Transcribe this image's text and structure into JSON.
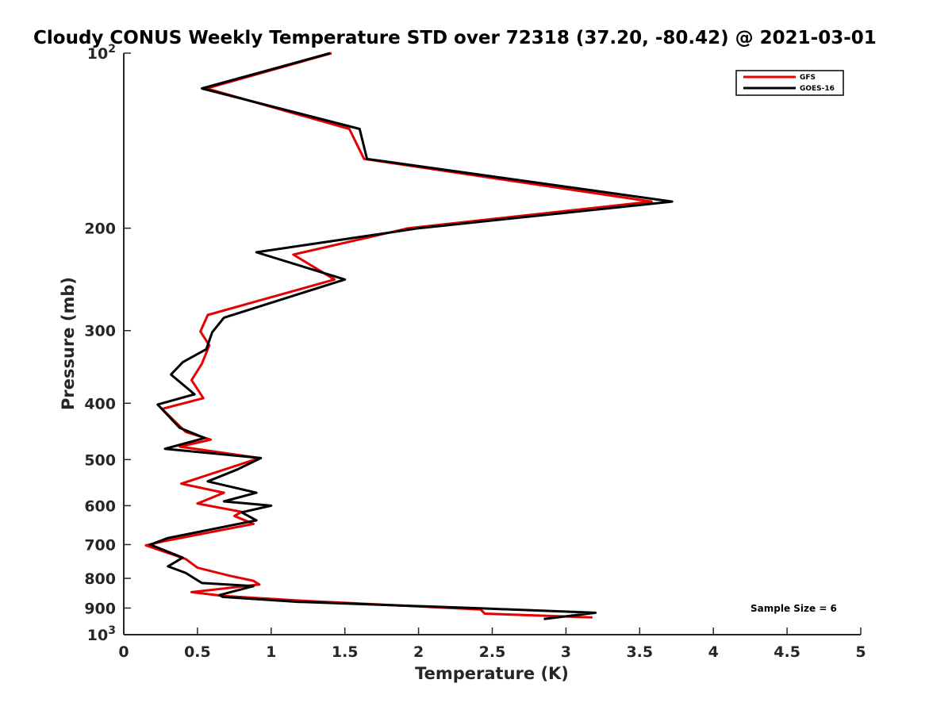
{
  "chart_data": {
    "type": "line",
    "title": "Cloudy CONUS Weekly Temperature STD over 72318 (37.20, -80.42) @ 2021-03-01",
    "xlabel": "Temperature (K)",
    "ylabel": "Pressure (mb)",
    "xlim": [
      0,
      5
    ],
    "ylim": [
      100,
      1000
    ],
    "yscale": "log",
    "yreversed": true,
    "x_ticks": [
      {
        "value": 0,
        "label": "0"
      },
      {
        "value": 0.5,
        "label": "0.5"
      },
      {
        "value": 1,
        "label": "1"
      },
      {
        "value": 1.5,
        "label": "1.5"
      },
      {
        "value": 2,
        "label": "2"
      },
      {
        "value": 2.5,
        "label": "2.5"
      },
      {
        "value": 3,
        "label": "3"
      },
      {
        "value": 3.5,
        "label": "3.5"
      },
      {
        "value": 4,
        "label": "4"
      },
      {
        "value": 4.5,
        "label": "4.5"
      },
      {
        "value": 5,
        "label": "5"
      }
    ],
    "y_ticks": [
      {
        "value": 100,
        "base": "10",
        "exp": "2"
      },
      {
        "value": 200,
        "label": "200"
      },
      {
        "value": 300,
        "label": "300"
      },
      {
        "value": 400,
        "label": "400"
      },
      {
        "value": 500,
        "label": "500"
      },
      {
        "value": 600,
        "label": "600"
      },
      {
        "value": 700,
        "label": "700"
      },
      {
        "value": 800,
        "label": "800"
      },
      {
        "value": 900,
        "label": "900"
      },
      {
        "value": 1000,
        "base": "10",
        "exp": "3"
      }
    ],
    "legend_position": "top-right",
    "annotation": "Sample Size = 6",
    "series": [
      {
        "name": "GFS",
        "color": "#e60000",
        "points": [
          {
            "x": 1.41,
            "p": 100
          },
          {
            "x": 0.56,
            "p": 115
          },
          {
            "x": 1.53,
            "p": 135
          },
          {
            "x": 1.63,
            "p": 152
          },
          {
            "x": 3.58,
            "p": 180
          },
          {
            "x": 1.93,
            "p": 200
          },
          {
            "x": 1.15,
            "p": 222
          },
          {
            "x": 1.43,
            "p": 245
          },
          {
            "x": 0.57,
            "p": 282
          },
          {
            "x": 0.52,
            "p": 301
          },
          {
            "x": 0.58,
            "p": 318
          },
          {
            "x": 0.53,
            "p": 342
          },
          {
            "x": 0.46,
            "p": 365
          },
          {
            "x": 0.54,
            "p": 392
          },
          {
            "x": 0.26,
            "p": 409
          },
          {
            "x": 0.42,
            "p": 448
          },
          {
            "x": 0.59,
            "p": 462
          },
          {
            "x": 0.38,
            "p": 475
          },
          {
            "x": 0.92,
            "p": 497
          },
          {
            "x": 0.39,
            "p": 550
          },
          {
            "x": 0.68,
            "p": 570
          },
          {
            "x": 0.5,
            "p": 595
          },
          {
            "x": 0.8,
            "p": 615
          },
          {
            "x": 0.75,
            "p": 625
          },
          {
            "x": 0.88,
            "p": 645
          },
          {
            "x": 0.28,
            "p": 690
          },
          {
            "x": 0.15,
            "p": 702
          },
          {
            "x": 0.42,
            "p": 741
          },
          {
            "x": 0.5,
            "p": 767
          },
          {
            "x": 0.72,
            "p": 792
          },
          {
            "x": 0.88,
            "p": 808
          },
          {
            "x": 0.92,
            "p": 820
          },
          {
            "x": 0.46,
            "p": 845
          },
          {
            "x": 0.68,
            "p": 858
          },
          {
            "x": 1.2,
            "p": 874
          },
          {
            "x": 2.42,
            "p": 905
          },
          {
            "x": 2.45,
            "p": 920
          },
          {
            "x": 3.18,
            "p": 934
          }
        ]
      },
      {
        "name": "GOES-16",
        "color": "#000000",
        "points": [
          {
            "x": 1.4,
            "p": 100
          },
          {
            "x": 0.53,
            "p": 115
          },
          {
            "x": 1.6,
            "p": 135
          },
          {
            "x": 1.65,
            "p": 152
          },
          {
            "x": 3.72,
            "p": 180
          },
          {
            "x": 2.0,
            "p": 200
          },
          {
            "x": 0.9,
            "p": 220
          },
          {
            "x": 1.5,
            "p": 245
          },
          {
            "x": 0.68,
            "p": 285
          },
          {
            "x": 0.6,
            "p": 302
          },
          {
            "x": 0.56,
            "p": 323
          },
          {
            "x": 0.4,
            "p": 340
          },
          {
            "x": 0.32,
            "p": 357
          },
          {
            "x": 0.48,
            "p": 386
          },
          {
            "x": 0.23,
            "p": 402
          },
          {
            "x": 0.38,
            "p": 441
          },
          {
            "x": 0.55,
            "p": 459
          },
          {
            "x": 0.28,
            "p": 479
          },
          {
            "x": 0.93,
            "p": 497
          },
          {
            "x": 0.77,
            "p": 520
          },
          {
            "x": 0.57,
            "p": 545
          },
          {
            "x": 0.9,
            "p": 570
          },
          {
            "x": 0.68,
            "p": 590
          },
          {
            "x": 1.0,
            "p": 600
          },
          {
            "x": 0.8,
            "p": 616
          },
          {
            "x": 0.9,
            "p": 636
          },
          {
            "x": 0.3,
            "p": 682
          },
          {
            "x": 0.18,
            "p": 700
          },
          {
            "x": 0.4,
            "p": 737
          },
          {
            "x": 0.3,
            "p": 763
          },
          {
            "x": 0.42,
            "p": 783
          },
          {
            "x": 0.53,
            "p": 815
          },
          {
            "x": 0.88,
            "p": 825
          },
          {
            "x": 0.65,
            "p": 855
          },
          {
            "x": 0.67,
            "p": 861
          },
          {
            "x": 1.18,
            "p": 878
          },
          {
            "x": 2.42,
            "p": 901
          },
          {
            "x": 3.2,
            "p": 917
          },
          {
            "x": 2.85,
            "p": 940
          }
        ]
      }
    ]
  }
}
